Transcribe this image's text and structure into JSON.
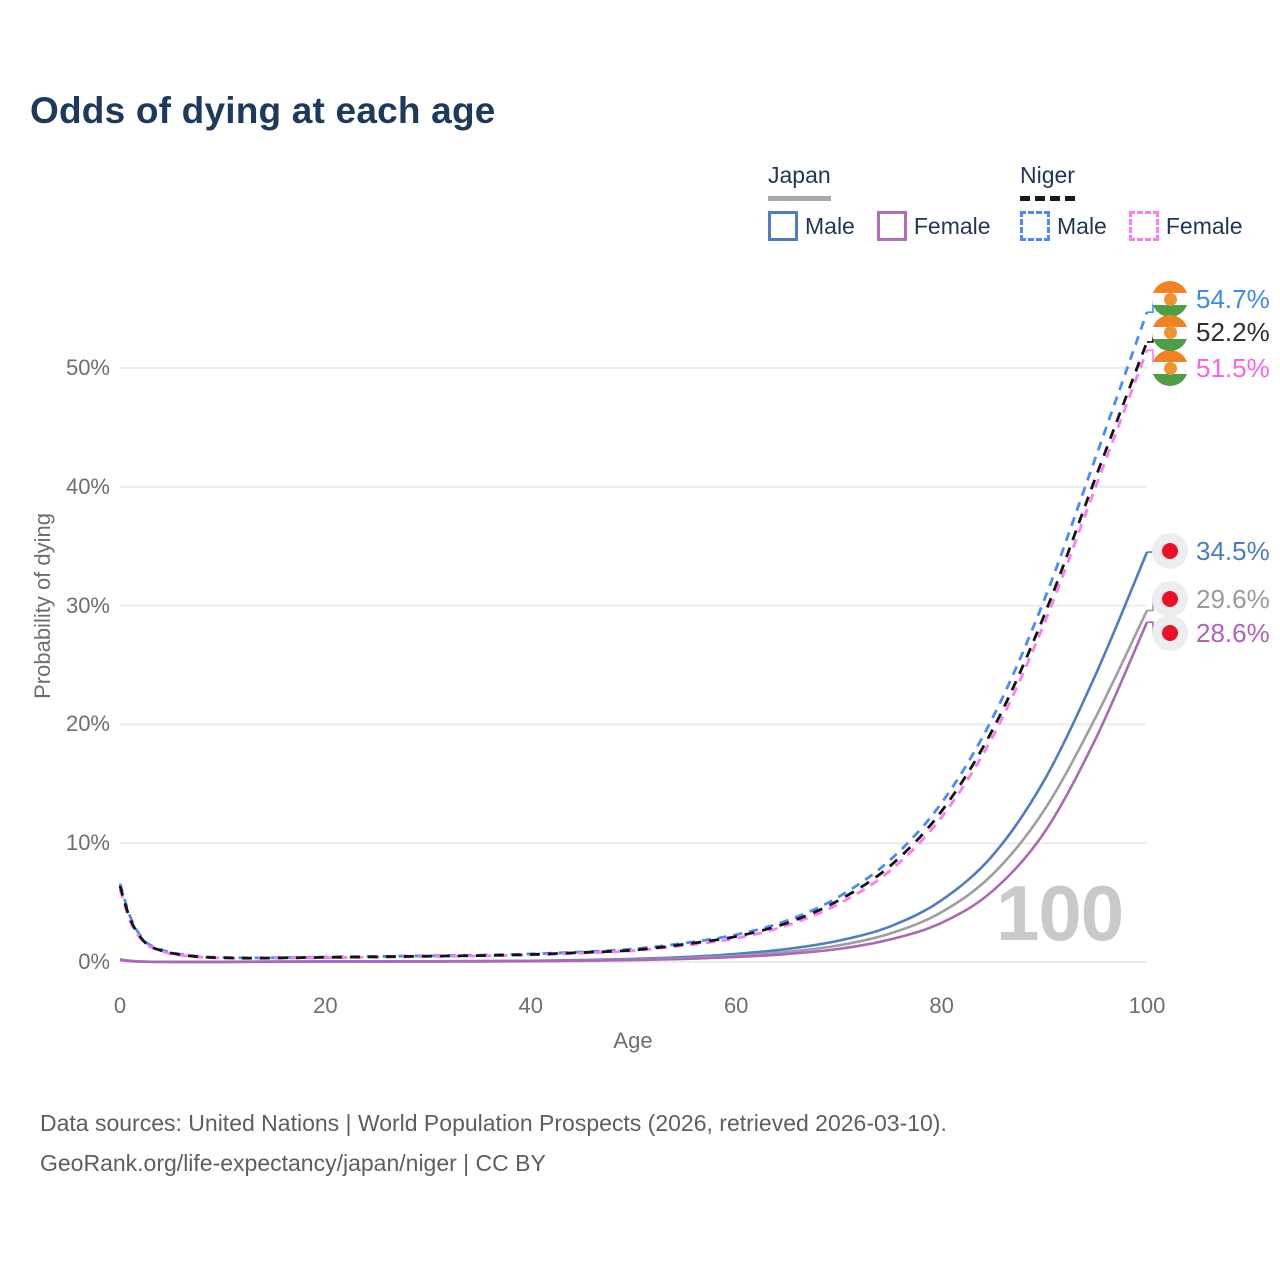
{
  "header": {
    "title": "Odds of dying at each age"
  },
  "legend": {
    "groups": [
      {
        "country": "Japan",
        "line_style": "solid",
        "line_color": "#a8a8a8",
        "items": [
          {
            "label": "Male",
            "color": "#4f7dbf"
          },
          {
            "label": "Female",
            "color": "#b06fb8"
          }
        ]
      },
      {
        "country": "Niger",
        "line_style": "dashed",
        "line_color": "#1a1a1a",
        "items": [
          {
            "label": "Male",
            "color": "#4b8bf5"
          },
          {
            "label": "Female",
            "color": "#fb7def"
          }
        ]
      }
    ]
  },
  "chart_data": {
    "type": "line",
    "title": "Odds of dying at each age",
    "xlabel": "Age",
    "ylabel": "Probability of dying",
    "x_ticks": [
      0,
      20,
      40,
      60,
      80,
      100
    ],
    "y_ticks": [
      "0%",
      "10%",
      "20%",
      "30%",
      "40%",
      "50%"
    ],
    "xlim": [
      0,
      100
    ],
    "ylim_pct": [
      0,
      57
    ],
    "grid": "horizontal",
    "legend_position": "top-right",
    "watermark": "100",
    "series": [
      {
        "id": "niger_male",
        "name": "Niger Male",
        "country": "Niger",
        "sex": "Male",
        "color": "#4b8bf5",
        "dash": "9 7",
        "label_color": "#3e89ea",
        "end_label": {
          "text": "54.7%",
          "flag": "niger"
        },
        "points": [
          [
            0,
            6.6
          ],
          [
            1,
            3.8
          ],
          [
            2,
            2.2
          ],
          [
            3,
            1.4
          ],
          [
            5,
            0.8
          ],
          [
            8,
            0.45
          ],
          [
            12,
            0.35
          ],
          [
            16,
            0.37
          ],
          [
            20,
            0.42
          ],
          [
            25,
            0.47
          ],
          [
            30,
            0.52
          ],
          [
            35,
            0.58
          ],
          [
            40,
            0.68
          ],
          [
            45,
            0.85
          ],
          [
            50,
            1.1
          ],
          [
            55,
            1.6
          ],
          [
            60,
            2.3
          ],
          [
            65,
            3.5
          ],
          [
            70,
            5.5
          ],
          [
            75,
            8.6
          ],
          [
            80,
            13.4
          ],
          [
            85,
            20.6
          ],
          [
            90,
            30.5
          ],
          [
            95,
            42.5
          ],
          [
            100,
            54.7
          ]
        ]
      },
      {
        "id": "niger_female",
        "name": "Niger Female",
        "country": "Niger",
        "sex": "Female",
        "color": "#fb7def",
        "dash": "9 7",
        "label_color": "#f963e6",
        "end_label": {
          "text": "51.5%",
          "flag": "niger"
        },
        "points": [
          [
            0,
            6.1
          ],
          [
            1,
            3.4
          ],
          [
            2,
            2.0
          ],
          [
            3,
            1.25
          ],
          [
            5,
            0.7
          ],
          [
            8,
            0.4
          ],
          [
            12,
            0.31
          ],
          [
            16,
            0.33
          ],
          [
            20,
            0.36
          ],
          [
            25,
            0.41
          ],
          [
            30,
            0.46
          ],
          [
            35,
            0.51
          ],
          [
            40,
            0.6
          ],
          [
            45,
            0.75
          ],
          [
            50,
            0.95
          ],
          [
            55,
            1.4
          ],
          [
            60,
            2.0
          ],
          [
            65,
            3.1
          ],
          [
            70,
            4.9
          ],
          [
            75,
            7.7
          ],
          [
            80,
            12.2
          ],
          [
            85,
            19.0
          ],
          [
            90,
            28.5
          ],
          [
            95,
            40.0
          ],
          [
            100,
            51.5
          ]
        ]
      },
      {
        "id": "niger_total",
        "name": "Niger",
        "country": "Niger",
        "sex": "All",
        "color": "#141414",
        "dash": "10 8",
        "label_color": "#2e2e2e",
        "end_label": {
          "text": "52.2%",
          "flag": "niger"
        },
        "points": [
          [
            0,
            6.4
          ],
          [
            1,
            3.6
          ],
          [
            2,
            2.1
          ],
          [
            3,
            1.3
          ],
          [
            5,
            0.75
          ],
          [
            8,
            0.42
          ],
          [
            12,
            0.33
          ],
          [
            16,
            0.35
          ],
          [
            20,
            0.39
          ],
          [
            25,
            0.44
          ],
          [
            30,
            0.49
          ],
          [
            35,
            0.54
          ],
          [
            40,
            0.63
          ],
          [
            45,
            0.8
          ],
          [
            50,
            1.0
          ],
          [
            55,
            1.5
          ],
          [
            60,
            2.15
          ],
          [
            65,
            3.3
          ],
          [
            70,
            5.2
          ],
          [
            75,
            8.1
          ],
          [
            80,
            12.7
          ],
          [
            85,
            19.6
          ],
          [
            90,
            29.2
          ],
          [
            95,
            40.8
          ],
          [
            100,
            52.2
          ]
        ]
      },
      {
        "id": "japan_male",
        "name": "Japan Male",
        "country": "Japan",
        "sex": "Male",
        "color": "#4f7dbf",
        "dash": null,
        "label_color": "#4a7cc6",
        "end_label": {
          "text": "34.5%",
          "flag": "japan"
        },
        "points": [
          [
            0,
            0.2
          ],
          [
            2,
            0.04
          ],
          [
            5,
            0.02
          ],
          [
            10,
            0.02
          ],
          [
            15,
            0.03
          ],
          [
            20,
            0.05
          ],
          [
            25,
            0.05
          ],
          [
            30,
            0.06
          ],
          [
            35,
            0.08
          ],
          [
            40,
            0.1
          ],
          [
            45,
            0.16
          ],
          [
            50,
            0.26
          ],
          [
            55,
            0.42
          ],
          [
            60,
            0.68
          ],
          [
            65,
            1.1
          ],
          [
            70,
            1.8
          ],
          [
            75,
            3.0
          ],
          [
            80,
            5.2
          ],
          [
            85,
            9.0
          ],
          [
            90,
            15.3
          ],
          [
            95,
            24.2
          ],
          [
            100,
            34.5
          ]
        ]
      },
      {
        "id": "japan_total",
        "name": "Japan",
        "country": "Japan",
        "sex": "All",
        "color": "#9e9ea3",
        "dash": null,
        "label_color": "#9a9a9a",
        "end_label": {
          "text": "29.6%",
          "flag": "japan"
        },
        "points": [
          [
            0,
            0.18
          ],
          [
            2,
            0.035
          ],
          [
            5,
            0.015
          ],
          [
            10,
            0.015
          ],
          [
            15,
            0.025
          ],
          [
            20,
            0.04
          ],
          [
            25,
            0.04
          ],
          [
            30,
            0.05
          ],
          [
            35,
            0.06
          ],
          [
            40,
            0.08
          ],
          [
            45,
            0.12
          ],
          [
            50,
            0.2
          ],
          [
            55,
            0.32
          ],
          [
            60,
            0.52
          ],
          [
            65,
            0.85
          ],
          [
            70,
            1.4
          ],
          [
            75,
            2.4
          ],
          [
            80,
            4.2
          ],
          [
            85,
            7.4
          ],
          [
            90,
            12.8
          ],
          [
            95,
            20.6
          ],
          [
            100,
            29.6
          ]
        ]
      },
      {
        "id": "japan_female",
        "name": "Japan Female",
        "country": "Japan",
        "sex": "Female",
        "color": "#ab68b5",
        "dash": null,
        "label_color": "#ad62b5",
        "end_label": {
          "text": "28.6%",
          "flag": "japan"
        },
        "points": [
          [
            0,
            0.16
          ],
          [
            2,
            0.03
          ],
          [
            5,
            0.012
          ],
          [
            10,
            0.012
          ],
          [
            15,
            0.02
          ],
          [
            20,
            0.03
          ],
          [
            25,
            0.03
          ],
          [
            30,
            0.04
          ],
          [
            35,
            0.05
          ],
          [
            40,
            0.065
          ],
          [
            45,
            0.1
          ],
          [
            50,
            0.16
          ],
          [
            55,
            0.26
          ],
          [
            60,
            0.42
          ],
          [
            65,
            0.68
          ],
          [
            70,
            1.1
          ],
          [
            75,
            1.9
          ],
          [
            80,
            3.3
          ],
          [
            85,
            6.0
          ],
          [
            90,
            10.9
          ],
          [
            95,
            18.8
          ],
          [
            100,
            28.6
          ]
        ]
      }
    ]
  },
  "footer": {
    "line1": "Data sources: United Nations | World Population Prospects (2026, retrieved 2026-03-10).",
    "line2": "GeoRank.org/life-expectancy/japan/niger | CC BY"
  }
}
